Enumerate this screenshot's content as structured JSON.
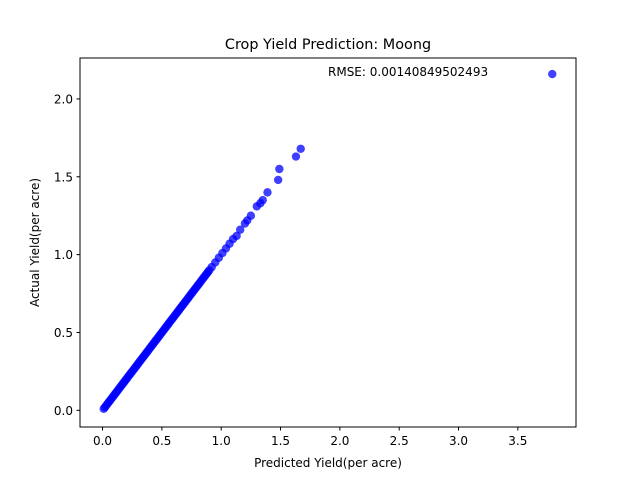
{
  "chart_data": {
    "type": "scatter",
    "title": "Crop Yield Prediction: Moong",
    "xlabel": "Predicted Yield(per acre)",
    "ylabel": "Actual Yield(per acre)",
    "annotation": "RMSE: 0.00140849502493",
    "xlim": [
      -0.19,
      3.99
    ],
    "ylim": [
      -0.107,
      2.263
    ],
    "xticks": [
      0.0,
      0.5,
      1.0,
      1.5,
      2.0,
      2.5,
      3.0,
      3.5
    ],
    "xtick_labels": [
      "0.0",
      "0.5",
      "1.0",
      "1.5",
      "2.0",
      "2.5",
      "3.0",
      "3.5"
    ],
    "yticks": [
      0.0,
      0.5,
      1.0,
      1.5,
      2.0
    ],
    "ytick_labels": [
      "0.0",
      "0.5",
      "1.0",
      "1.5",
      "2.0"
    ],
    "grid": false,
    "marker_color": "#0000ff",
    "dense_diagonal": {
      "from": 0.01,
      "to": 0.9,
      "step": 0.01
    },
    "points": [
      [
        0.92,
        0.92
      ],
      [
        0.95,
        0.95
      ],
      [
        0.98,
        0.98
      ],
      [
        1.01,
        1.01
      ],
      [
        1.04,
        1.04
      ],
      [
        1.07,
        1.07
      ],
      [
        1.1,
        1.1
      ],
      [
        1.13,
        1.12
      ],
      [
        1.16,
        1.16
      ],
      [
        1.2,
        1.2
      ],
      [
        1.22,
        1.22
      ],
      [
        1.25,
        1.25
      ],
      [
        1.3,
        1.31
      ],
      [
        1.33,
        1.33
      ],
      [
        1.35,
        1.35
      ],
      [
        1.39,
        1.4
      ],
      [
        1.48,
        1.48
      ],
      [
        1.49,
        1.55
      ],
      [
        1.63,
        1.63
      ],
      [
        1.67,
        1.68
      ],
      [
        3.79,
        2.16
      ]
    ]
  }
}
